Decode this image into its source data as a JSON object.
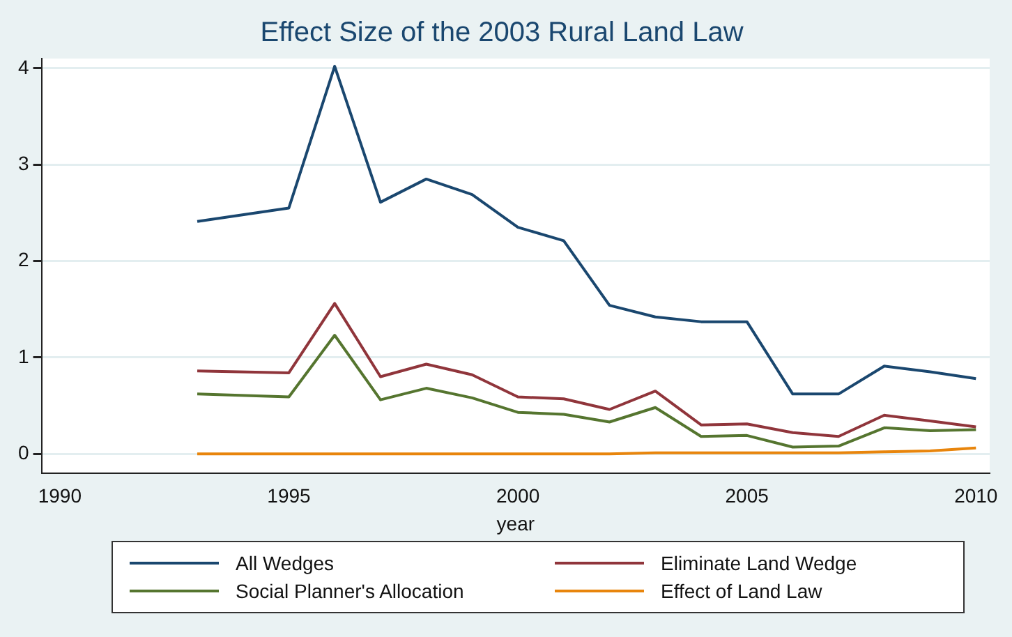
{
  "chart_data": {
    "type": "line",
    "title": "Effect Size of the 2003 Rural Land Law",
    "xlabel": "year",
    "x": [
      1993,
      1995,
      1996,
      1997,
      1998,
      1999,
      2000,
      2001,
      2002,
      2003,
      2004,
      2005,
      2006,
      2007,
      2008,
      2009,
      2010
    ],
    "series": [
      {
        "name": "All Wedges",
        "color": "#1a476f",
        "values": [
          2.41,
          2.55,
          4.02,
          2.61,
          2.85,
          2.69,
          2.35,
          2.21,
          1.54,
          1.42,
          1.37,
          1.37,
          0.62,
          0.62,
          0.91,
          0.85,
          0.78
        ]
      },
      {
        "name": "Eliminate Land Wedge",
        "color": "#90353b",
        "values": [
          0.86,
          0.84,
          1.56,
          0.8,
          0.93,
          0.82,
          0.59,
          0.57,
          0.46,
          0.65,
          0.3,
          0.31,
          0.22,
          0.18,
          0.4,
          0.34,
          0.28
        ]
      },
      {
        "name": "Social Planner's Allocation",
        "color": "#55752f",
        "values": [
          0.62,
          0.59,
          1.23,
          0.56,
          0.68,
          0.58,
          0.43,
          0.41,
          0.33,
          0.48,
          0.18,
          0.19,
          0.07,
          0.08,
          0.27,
          0.24,
          0.25
        ]
      },
      {
        "name": "Effect of Land Law",
        "color": "#e8850c",
        "values": [
          0,
          0,
          0,
          0,
          0,
          0,
          0,
          0,
          0,
          0.01,
          0.01,
          0.01,
          0.01,
          0.01,
          0.02,
          0.03,
          0.06
        ]
      }
    ],
    "xlim": [
      1989.6,
      2010.3
    ],
    "xticks": [
      1990,
      1995,
      2000,
      2005,
      2010
    ],
    "ylim": [
      -0.2,
      4.1
    ],
    "yticks": [
      0,
      1,
      2,
      3,
      4
    ],
    "grid": "y",
    "legend": "bottom",
    "marker": "none",
    "line_style": "solid"
  }
}
